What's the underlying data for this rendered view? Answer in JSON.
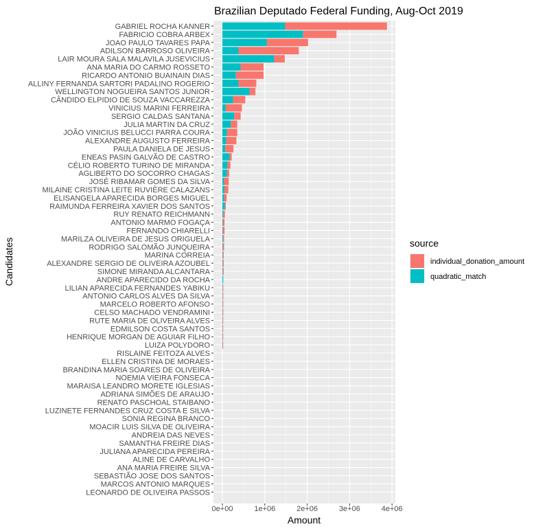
{
  "chart_data": {
    "type": "bar",
    "orientation": "horizontal",
    "stacked": true,
    "title": "Brazilian Deputado Federal Funding, Aug-Oct 2019",
    "xlabel": "Amount",
    "ylabel": "Candidates",
    "xlim": [
      0,
      4100000
    ],
    "x_ticks": [
      0,
      1000000,
      2000000,
      3000000,
      4000000
    ],
    "x_tick_labels": [
      "0e+00",
      "1e+06",
      "2e+06",
      "3e+06",
      "4e+06"
    ],
    "grid": true,
    "legend_position": "right",
    "legend": {
      "title": "source",
      "entries": [
        {
          "label": "individual_donation_amount",
          "color": "#F8766D"
        },
        {
          "label": "quadratic_match",
          "color": "#00BFC4"
        }
      ]
    },
    "categories": [
      "GABRIEL ROCHA KANNER",
      "FABRICIO COBRA ARBEX",
      "JOAO PAULO TAVARES PAPA",
      "ADILSON BARROSO OLIVEIRA",
      "LAIR MOURA SALA MALAVILA JUSEVICIUS",
      "ANA MARIA DO CARMO ROSSETO",
      "RICARDO ANTONIO BUAINAIN DIAS",
      "ALLINY FERNANDA SARTORI PADALINO ROGERIO",
      "WELLINGTON NOGUEIRA SANTOS JUNIOR",
      "CÂNDIDO ELPIDIO DE SOUZA VACCAREZZA",
      "VINICIUS MARINI FERREIRA",
      "SERGIO CALDAS SANTANA",
      "JULIA MARTIN DA CRUZ",
      "JOÃO VINICIUS BELUCCI PARRA COURA",
      "ALEXANDRE AUGUSTO FERREIRA",
      "PAULA DANIELA DE JESUS",
      "ENEAS PASIN GALVÃO DE CASTRO",
      "CÉLIO ROBERTO TURINO DE MIRANDA",
      "AGLIBERTO DO SOCORRO CHAGAS",
      "JOSÉ RIBAMAR GOMES DA SILVA",
      "MILAINE CRISTINA LEITE RUVIÈRE CALAZANS",
      "ELISANGELA APARECIDA BORGES MIGUEL",
      "RAIMUNDA FERREIRA XAVIER DOS SANTOS",
      "RUY RENATO REICHMANN",
      "ANTONIO MARMO FOGAÇA",
      "FERNANDO CHIARELLI",
      "MARILZA OLIVEIRA DE JESUS ORIGUELA",
      "RODRIGO SALOMÃO JUNQUEIRA",
      "MARINA CORREIA",
      "ALEXANDRE SERGIO DE OLIVEIRA AZOUBEL",
      "SIMONE MIRANDA ALCANTARA",
      "ANDRE APARECIDO DA ROCHA",
      "LILIAN APARECIDA FERNANDES YABIKU",
      "ANTONIO CARLOS ALVES DA SILVA",
      "MARCELO ROBERTO AFONSO",
      "CELSO MACHADO VENDRAMINI",
      "RUTE MARIA DE OLIVEIRA ALVES",
      "EDMILSON COSTA SANTOS",
      "HENRIQUE MORGAN DE AGUIAR FILHO",
      "LUIZA POLYDORO",
      "RISLAINE FEITOZA ALVES",
      "ELLEN CRISTINA DE MORAES",
      "BRANDINA MARIA SOARES DE OLIVEIRA",
      "NOEMIA VIEIRA FONSECA",
      "MARAISA LEANDRO MORETE IGLESIAS",
      "ADRIANA SIMÕES DE ARAUJO",
      "RENATO PASCHOAL STAIBANO",
      "LUZINETE FERNANDES CRUZ COSTA E SILVA",
      "SONIA REGINA BRANCO",
      "MOACIR LUIS SILVA DE OLIVEIRA",
      "ANDREIA DAS NEVES",
      "SAMANTHA FREIRE DIAS",
      "JULIANA APARECIDA PEREIRA",
      "ALINE DE CARVALHO",
      "ANA MARIA FREIRE SILVA",
      "SEBASTIÃO JOSE DOS SANTOS",
      "MARCOS ANTONIO MARQUES",
      "LEONARDO DE OLIVEIRA PASSOS"
    ],
    "series": [
      {
        "name": "quadratic_match",
        "color": "#00BFC4",
        "values": [
          1480000,
          1900000,
          1050000,
          380000,
          1220000,
          430000,
          320000,
          380000,
          640000,
          250000,
          80000,
          280000,
          200000,
          110000,
          90000,
          70000,
          170000,
          120000,
          110000,
          40000,
          50000,
          40000,
          60000,
          20000,
          15000,
          10000,
          20000,
          10000,
          10000,
          10000,
          10000,
          20000,
          5000,
          5000,
          5000,
          5000,
          5000,
          5000,
          5000,
          5000,
          0,
          0,
          0,
          0,
          0,
          0,
          0,
          0,
          0,
          0,
          0,
          0,
          0,
          0,
          0,
          0,
          0,
          0
        ]
      },
      {
        "name": "individual_donation_amount",
        "color": "#F8766D",
        "values": [
          2400000,
          790000,
          970000,
          1420000,
          250000,
          540000,
          650000,
          420000,
          140000,
          290000,
          380000,
          150000,
          150000,
          240000,
          240000,
          190000,
          50000,
          70000,
          50000,
          110000,
          90000,
          60000,
          20000,
          40000,
          35000,
          40000,
          20000,
          30000,
          20000,
          20000,
          20000,
          0,
          15000,
          15000,
          15000,
          15000,
          10000,
          10000,
          10000,
          10000,
          0,
          0,
          0,
          0,
          0,
          0,
          0,
          0,
          0,
          0,
          0,
          0,
          0,
          0,
          0,
          0,
          0,
          0
        ]
      }
    ]
  }
}
